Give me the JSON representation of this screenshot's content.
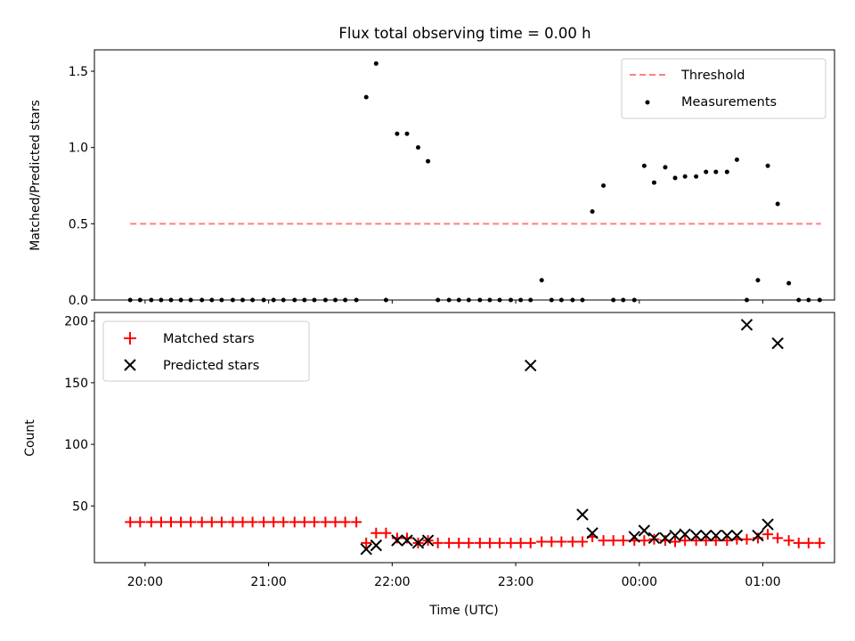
{
  "chart_data": [
    {
      "type": "scatter",
      "title": "Flux total observing time = 0.00 h",
      "xlabel": "",
      "ylabel": "Matched/Predicted stars",
      "ylim": [
        0,
        1.64
      ],
      "yticks": [
        0.0,
        0.5,
        1.0,
        1.5
      ],
      "ytick_labels": [
        "0.0",
        "0.5",
        "1.0",
        "1.5"
      ],
      "xlim": [
        -0.41,
        5.58
      ],
      "xticks": [
        0,
        1,
        2,
        3,
        4,
        5
      ],
      "legend_position": "top-right",
      "threshold": {
        "name": "Threshold",
        "color": "#ff7f7f",
        "value": 0.5,
        "x_range": [
          -0.12,
          5.47
        ]
      },
      "series": [
        {
          "name": "Measurements",
          "color": "#000000",
          "marker": "dot",
          "x": [
            -0.12,
            -0.04,
            0.05,
            0.13,
            0.21,
            0.29,
            0.37,
            0.46,
            0.54,
            0.62,
            0.71,
            0.79,
            0.87,
            0.96,
            1.04,
            1.12,
            1.21,
            1.29,
            1.37,
            1.46,
            1.54,
            1.62,
            1.71,
            1.79,
            1.87,
            1.95,
            2.04,
            2.12,
            2.21,
            2.29,
            2.37,
            2.46,
            2.54,
            2.62,
            2.71,
            2.79,
            2.87,
            2.96,
            3.04,
            3.12,
            3.21,
            3.29,
            3.37,
            3.46,
            3.54,
            3.62,
            3.71,
            3.79,
            3.87,
            3.96,
            4.04,
            4.12,
            4.21,
            4.29,
            4.37,
            4.46,
            4.54,
            4.62,
            4.71,
            4.79,
            4.87,
            4.96,
            5.04,
            5.12,
            5.21,
            5.29,
            5.37,
            5.46
          ],
          "values": [
            0,
            0,
            0,
            0,
            0,
            0,
            0,
            0,
            0,
            0,
            0,
            0,
            0,
            0,
            0,
            0,
            0,
            0,
            0,
            0,
            0,
            0,
            0,
            1.33,
            1.55,
            0,
            1.09,
            1.09,
            1.0,
            0.91,
            0,
            0,
            0,
            0,
            0,
            0,
            0,
            0,
            0,
            0,
            0.13,
            0,
            0,
            0,
            0,
            0.58,
            0.75,
            0,
            0,
            0,
            0.88,
            0.77,
            0.87,
            0.8,
            0.81,
            0.81,
            0.84,
            0.84,
            0.84,
            0.92,
            0,
            0.13,
            0.88,
            0.63,
            0.11,
            0,
            0,
            0
          ]
        }
      ]
    },
    {
      "type": "scatter",
      "title": "",
      "xlabel": "Time (UTC)",
      "ylabel": "Count",
      "ylim": [
        4.0,
        207.0
      ],
      "yticks": [
        50,
        100,
        150,
        200
      ],
      "ytick_labels": [
        "50",
        "100",
        "150",
        "200"
      ],
      "xlim": [
        -0.41,
        5.58
      ],
      "xticks": [
        0,
        1,
        2,
        3,
        4,
        5
      ],
      "xtick_labels": [
        "20:00",
        "21:00",
        "22:00",
        "23:00",
        "00:00",
        "01:00"
      ],
      "legend_position": "top-left",
      "series": [
        {
          "name": "Matched stars",
          "color": "#ff0000",
          "marker": "plus",
          "x": [
            -0.12,
            -0.04,
            0.05,
            0.13,
            0.21,
            0.29,
            0.37,
            0.46,
            0.54,
            0.62,
            0.71,
            0.79,
            0.87,
            0.96,
            1.04,
            1.12,
            1.21,
            1.29,
            1.37,
            1.46,
            1.54,
            1.62,
            1.71,
            1.79,
            1.87,
            1.95,
            2.04,
            2.12,
            2.21,
            2.29,
            2.37,
            2.46,
            2.54,
            2.62,
            2.71,
            2.79,
            2.87,
            2.96,
            3.04,
            3.12,
            3.21,
            3.29,
            3.37,
            3.46,
            3.54,
            3.62,
            3.71,
            3.79,
            3.87,
            3.96,
            4.04,
            4.12,
            4.21,
            4.29,
            4.37,
            4.46,
            4.54,
            4.62,
            4.71,
            4.79,
            4.87,
            4.96,
            5.04,
            5.12,
            5.21,
            5.29,
            5.37,
            5.46
          ],
          "values": [
            37,
            37,
            37,
            37,
            37,
            37,
            37,
            37,
            37,
            37,
            37,
            37,
            37,
            37,
            37,
            37,
            37,
            37,
            37,
            37,
            37,
            37,
            37,
            20,
            28,
            28,
            24,
            24,
            20,
            22,
            20,
            20,
            20,
            20,
            20,
            20,
            20,
            20,
            20,
            20,
            21,
            21,
            21,
            21,
            21,
            25,
            22,
            22,
            22,
            22,
            22,
            23,
            22,
            21,
            22,
            22,
            22,
            22,
            22,
            23,
            23,
            24,
            27,
            24,
            22,
            20,
            20,
            20
          ]
        },
        {
          "name": "Predicted stars",
          "color": "#000000",
          "marker": "x",
          "x": [
            1.79,
            1.87,
            2.04,
            2.12,
            2.21,
            2.29,
            3.12,
            3.54,
            3.62,
            3.96,
            4.04,
            4.12,
            4.21,
            4.29,
            4.37,
            4.46,
            4.54,
            4.62,
            4.71,
            4.79,
            4.87,
            4.96,
            5.04,
            5.12
          ],
          "values": [
            15,
            18,
            22,
            22,
            20,
            22,
            164,
            43,
            28,
            25,
            30,
            24,
            24,
            26,
            27,
            26,
            26,
            26,
            26,
            26,
            197,
            26,
            35,
            182
          ]
        }
      ]
    }
  ]
}
